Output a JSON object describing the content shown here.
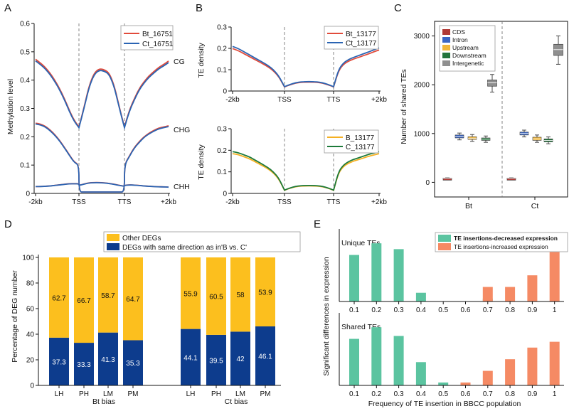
{
  "panel_labels": [
    "A",
    "B",
    "C",
    "D",
    "E"
  ],
  "colors": {
    "red": "#e14b3b",
    "blue": "#2a64b3",
    "orange": "#f5b022",
    "green": "#1d7a3a",
    "gold": "#fcbf1e",
    "navy": "#0d3c8d",
    "teal": "#5bc4a0",
    "salmon": "#f58a64",
    "cds": "#b03a36",
    "intron": "#3a66c4",
    "upstream": "#f0b63a",
    "downstream": "#23743c",
    "intergenic": "#8f8f8f"
  },
  "chart_data": [
    {
      "id": "A",
      "type": "line",
      "ylabel": "Methylation level",
      "ylim": [
        0,
        0.6
      ],
      "yticks": [
        "0",
        "0.1",
        "0.2",
        "0.3",
        "0.4",
        "0.5",
        "0.6"
      ],
      "xticks": [
        "-2kb",
        "TSS",
        "TTS",
        "+2kb"
      ],
      "legend": [
        "Bt_16751",
        "Ct_16751"
      ],
      "series_labels": [
        "CG",
        "CHG",
        "CHH"
      ],
      "profiles": {
        "CG": {
          "up": [
            0.468,
            0.455,
            0.44,
            0.42,
            0.395,
            0.365,
            0.33,
            0.29,
            0.255,
            0.232
          ],
          "body": [
            0.232,
            0.3,
            0.375,
            0.42,
            0.435,
            0.432,
            0.42,
            0.375,
            0.3,
            0.232
          ],
          "down": [
            0.232,
            0.29,
            0.33,
            0.365,
            0.39,
            0.41,
            0.425,
            0.44,
            0.45,
            0.462
          ]
        },
        "CHG": {
          "up": [
            0.245,
            0.242,
            0.235,
            0.222,
            0.205,
            0.185,
            0.16,
            0.135,
            0.11,
            0.1
          ],
          "body": [
            0.005,
            0.005,
            0.005,
            0.005,
            0.005,
            0.005,
            0.005,
            0.005,
            0.005,
            0.005
          ],
          "down": [
            0.1,
            0.13,
            0.16,
            0.18,
            0.198,
            0.21,
            0.22,
            0.228,
            0.232,
            0.236
          ]
        },
        "CHH": {
          "up": [
            0.024,
            0.024,
            0.025,
            0.026,
            0.028,
            0.03,
            0.032,
            0.034,
            0.034,
            0.034
          ],
          "body": [
            0.028,
            0.033,
            0.037,
            0.038,
            0.038,
            0.037,
            0.035,
            0.032,
            0.028,
            0.025
          ],
          "down": [
            0.028,
            0.03,
            0.029,
            0.028,
            0.026,
            0.025,
            0.024,
            0.023,
            0.023,
            0.022
          ]
        }
      }
    },
    {
      "id": "B-top",
      "type": "line",
      "ylabel": "TE density",
      "ylim": [
        0,
        0.3
      ],
      "yticks": [
        "0",
        "0.1",
        "0.2",
        "0.3"
      ],
      "xticks": [
        "-2kb",
        "TSS",
        "TTS",
        "+2kb"
      ],
      "legend": [
        "Bt_13177",
        "Ct_13177"
      ],
      "profile": {
        "up": [
          0.205,
          0.195,
          0.18,
          0.165,
          0.15,
          0.135,
          0.12,
          0.1,
          0.07,
          0.02
        ],
        "body": [
          0.02,
          0.03,
          0.038,
          0.042,
          0.043,
          0.043,
          0.042,
          0.038,
          0.03,
          0.02
        ],
        "down": [
          0.02,
          0.1,
          0.13,
          0.145,
          0.155,
          0.163,
          0.172,
          0.18,
          0.19,
          0.198
        ]
      }
    },
    {
      "id": "B-bottom",
      "type": "line",
      "ylabel": "TE  density",
      "ylim": [
        0,
        0.3
      ],
      "yticks": [
        "0",
        "0.1",
        "0.2",
        "0.3"
      ],
      "xticks": [
        "-2kb",
        "TSS",
        "TTS",
        "+2kb"
      ],
      "legend": [
        "B_13177",
        "C_13177"
      ],
      "profile": {
        "up": [
          0.19,
          0.185,
          0.175,
          0.165,
          0.15,
          0.135,
          0.12,
          0.1,
          0.07,
          0.015
        ],
        "body": [
          0.015,
          0.025,
          0.032,
          0.035,
          0.036,
          0.036,
          0.035,
          0.032,
          0.025,
          0.015
        ],
        "down": [
          0.015,
          0.1,
          0.13,
          0.145,
          0.155,
          0.162,
          0.17,
          0.178,
          0.184,
          0.19
        ]
      }
    },
    {
      "id": "C",
      "type": "box",
      "ylabel": "Number of shared TEs",
      "ylim": [
        -300,
        3300
      ],
      "yticks": [
        0,
        1000,
        2000,
        3000
      ],
      "groups": [
        "Bt",
        "Ct"
      ],
      "categories": [
        "CDS",
        "Intron",
        "Upstream",
        "Downstream",
        "Intergenetic"
      ],
      "boxes": {
        "Bt": [
          {
            "min": 70,
            "q1": 75,
            "med": 80,
            "q3": 88,
            "max": 92
          },
          {
            "min": 870,
            "q1": 910,
            "med": 940,
            "q3": 970,
            "max": 1010
          },
          {
            "min": 840,
            "q1": 880,
            "med": 905,
            "q3": 935,
            "max": 980
          },
          {
            "min": 820,
            "q1": 860,
            "med": 885,
            "q3": 910,
            "max": 950
          },
          {
            "min": 1850,
            "q1": 1970,
            "med": 2040,
            "q3": 2100,
            "max": 2210
          }
        ],
        "Ct": [
          {
            "min": 70,
            "q1": 75,
            "med": 80,
            "q3": 88,
            "max": 92
          },
          {
            "min": 930,
            "q1": 970,
            "med": 1000,
            "q3": 1030,
            "max": 1070
          },
          {
            "min": 820,
            "q1": 860,
            "med": 890,
            "q3": 925,
            "max": 970
          },
          {
            "min": 790,
            "q1": 830,
            "med": 860,
            "q3": 890,
            "max": 930
          },
          {
            "min": 2420,
            "q1": 2600,
            "med": 2720,
            "q3": 2830,
            "max": 3000
          }
        ]
      }
    },
    {
      "id": "D",
      "type": "bar",
      "stacked": true,
      "ylabel": "Percentage of DEG number",
      "ylim": [
        0,
        100
      ],
      "yticks": [
        0,
        20,
        40,
        60,
        80,
        100
      ],
      "categories": [
        "LH",
        "PH",
        "LM",
        "PM",
        "LH",
        "PH",
        "LM",
        "PM"
      ],
      "group_labels": [
        "Bt bias",
        "Ct bias"
      ],
      "legend": [
        "Other DEGs",
        "DEGs with same direction as in'B vs. C'"
      ],
      "series": [
        {
          "name": "DEGs with same direction as in'B vs. C'",
          "values": [
            37.3,
            33.3,
            41.3,
            35.3,
            44.1,
            39.5,
            42,
            46.1
          ],
          "labels": [
            "37.3",
            "33.3",
            "41.3",
            "35.3",
            "44.1",
            "39.5",
            "42",
            "46.1"
          ]
        },
        {
          "name": "Other DEGs",
          "values": [
            62.7,
            66.7,
            58.7,
            64.7,
            55.9,
            60.5,
            58,
            53.9
          ],
          "labels": [
            "62.7",
            "66.7",
            "58.7",
            "64.7",
            "55.9",
            "60.5",
            "58",
            "53.9"
          ]
        }
      ]
    },
    {
      "id": "E",
      "type": "bar",
      "ylabel": "Significant differences in expression",
      "xlabel": "Frequency of TE insertion in BBCC population",
      "x": [
        "0.1",
        "0.2",
        "0.3",
        "0.4",
        "0.5",
        "0.6",
        "0.7",
        "0.8",
        "0.9",
        "1"
      ],
      "legend": [
        "TE insertions-decreased expression",
        "TE insertions-increased expression"
      ],
      "panels": [
        {
          "title": "Unique TEs",
          "ylim": [
            0,
            22
          ],
          "decreased": [
            16,
            20,
            18,
            3,
            0,
            0,
            1,
            0,
            0,
            0
          ],
          "increased": [
            0,
            0,
            0,
            0,
            0,
            0,
            5,
            5,
            9,
            17
          ]
        },
        {
          "title": "Shared TEs",
          "ylim": [
            0,
            22
          ],
          "decreased": [
            16,
            20,
            17,
            8,
            1,
            0,
            0,
            0,
            0,
            0
          ],
          "increased": [
            0,
            0,
            0,
            0,
            0,
            1,
            5,
            9,
            13,
            15
          ]
        }
      ]
    }
  ]
}
